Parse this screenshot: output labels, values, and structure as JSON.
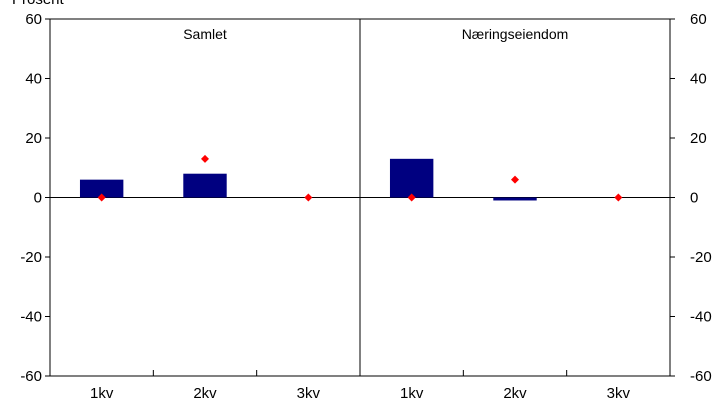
{
  "chart_data": {
    "type": "bar",
    "ylabel": "Prosent",
    "ylim": [
      -60,
      60
    ],
    "yticks": [
      60,
      40,
      20,
      0,
      -20,
      -40,
      -60
    ],
    "grid": false,
    "colors": {
      "bar": "#000080",
      "marker": "#ff0000",
      "axis": "#000000"
    },
    "panels": [
      {
        "title": "Samlet",
        "categories": [
          "1kv",
          "2kv",
          "3kv"
        ],
        "bars": [
          6,
          8,
          null
        ],
        "markers": [
          0,
          13,
          0
        ]
      },
      {
        "title": "Næringseiendom",
        "categories": [
          "1kv",
          "2kv",
          "3kv"
        ],
        "bars": [
          13,
          -1,
          null
        ],
        "markers": [
          0,
          6,
          0
        ]
      }
    ]
  }
}
